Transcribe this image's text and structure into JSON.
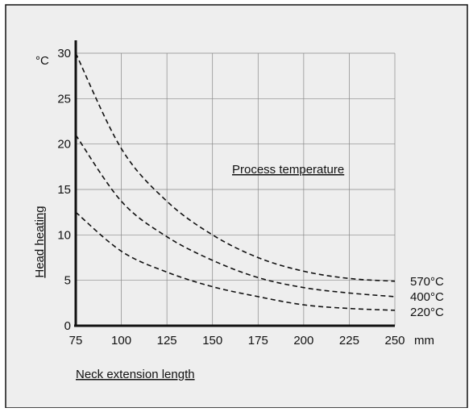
{
  "chart_data": {
    "type": "line",
    "title": "",
    "xlabel": "Neck extension length",
    "ylabel": "Head heating",
    "x_unit": "mm",
    "y_unit": "°C",
    "xlim": [
      75,
      250
    ],
    "ylim": [
      0,
      30
    ],
    "x_ticks": [
      75,
      100,
      125,
      150,
      175,
      200,
      225,
      250
    ],
    "y_ticks": [
      0,
      5,
      10,
      15,
      20,
      25,
      30
    ],
    "grid": true,
    "line_style": "dashed",
    "annotation": "Process temperature",
    "series": [
      {
        "name": "570°C",
        "x": [
          75,
          100,
          125,
          150,
          175,
          200,
          225,
          250
        ],
        "y": [
          30,
          19.5,
          13.7,
          10,
          7.5,
          6,
          5.2,
          4.9
        ]
      },
      {
        "name": "400°C",
        "x": [
          75,
          100,
          125,
          150,
          175,
          200,
          225,
          250
        ],
        "y": [
          21,
          13.7,
          9.8,
          7.2,
          5.3,
          4.2,
          3.6,
          3.2
        ]
      },
      {
        "name": "220°C",
        "x": [
          75,
          100,
          125,
          150,
          175,
          200,
          225,
          250
        ],
        "y": [
          12.5,
          8.2,
          5.9,
          4.3,
          3.2,
          2.3,
          1.9,
          1.7
        ]
      }
    ]
  }
}
